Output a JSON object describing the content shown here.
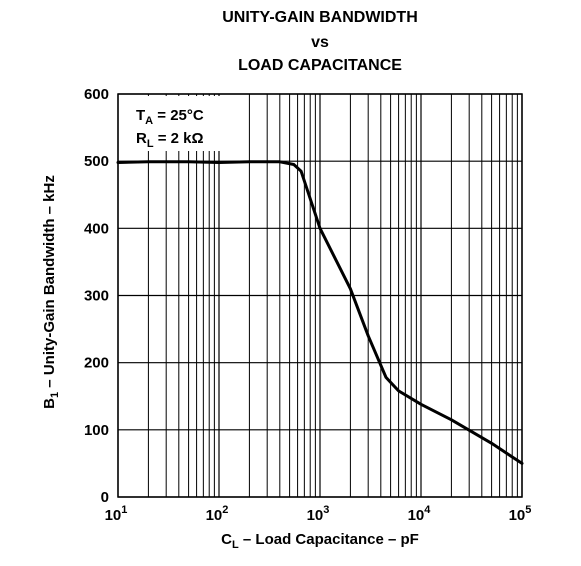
{
  "chart_data": {
    "type": "line",
    "title_lines": [
      "UNITY-GAIN BANDWIDTH",
      "vs",
      "LOAD CAPACITANCE"
    ],
    "xlabel": {
      "main": "C",
      "sub": "L",
      "rest": " – Load Capacitance – pF"
    },
    "ylabel": {
      "main": "B",
      "sub": "1",
      "rest": " – Unity-Gain Bandwidth – kHz"
    },
    "x_scale": "log",
    "xlim": [
      10,
      100000
    ],
    "ylim": [
      0,
      600
    ],
    "x_ticks": [
      {
        "value": 10,
        "base": "10",
        "exp": "1"
      },
      {
        "value": 100,
        "base": "10",
        "exp": "2"
      },
      {
        "value": 1000,
        "base": "10",
        "exp": "3"
      },
      {
        "value": 10000,
        "base": "10",
        "exp": "4"
      },
      {
        "value": 100000,
        "base": "10",
        "exp": "5"
      }
    ],
    "y_ticks": [
      0,
      100,
      200,
      300,
      400,
      500,
      600
    ],
    "grid": true,
    "annotations": [
      {
        "main": "T",
        "sub": "A",
        "rest": " = 25°C"
      },
      {
        "main": "R",
        "sub": "L",
        "rest": " = 2 kΩ"
      }
    ],
    "annotation_placement": "top-left",
    "series": [
      {
        "color": "#000000",
        "x": [
          10,
          20,
          50,
          100,
          200,
          400,
          550,
          650,
          1000,
          2000,
          3000,
          4500,
          6000,
          10000,
          20000,
          50000,
          100000
        ],
        "y": [
          498,
          499,
          499,
          498,
          499,
          499,
          495,
          485,
          400,
          310,
          240,
          178,
          158,
          138,
          115,
          80,
          50
        ]
      }
    ]
  }
}
